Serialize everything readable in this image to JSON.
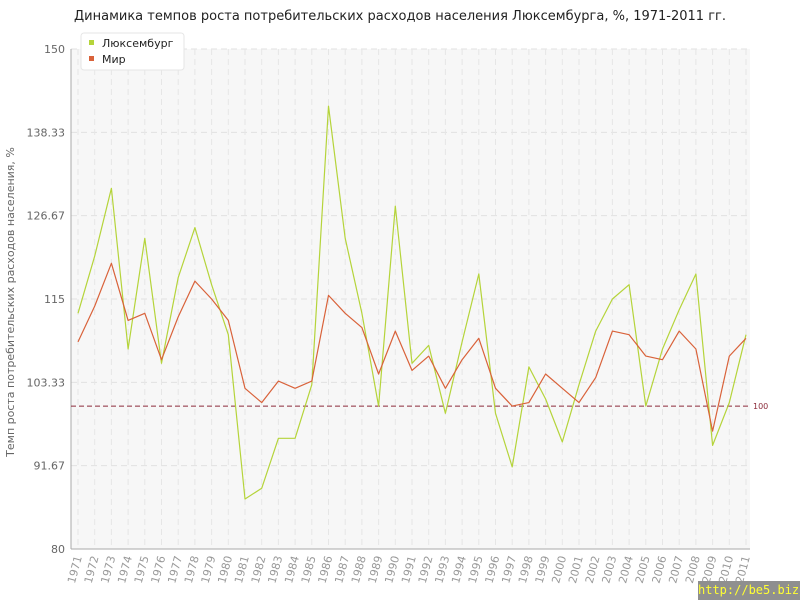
{
  "title": "Динамика темпов роста потребительских расходов населения Люксембурга, %, 1971-2011 гг.",
  "watermark": "http://be5.biz/",
  "chart_data": {
    "type": "line",
    "ylabel": "Темп роста потребительских расходов населения, %",
    "xlabel": "",
    "ylim": [
      80,
      150
    ],
    "yticks": [
      "80",
      "91.67",
      "103.33",
      "115",
      "126.67",
      "138.33",
      "150"
    ],
    "grid": true,
    "legend_position": "top-left",
    "reference_line": {
      "value": 100,
      "label": "100",
      "color": "#8b2a3a"
    },
    "categories": [
      "1971",
      "1972",
      "1973",
      "1974",
      "1975",
      "1976",
      "1977",
      "1978",
      "1979",
      "1980",
      "1981",
      "1982",
      "1983",
      "1984",
      "1985",
      "1986",
      "1987",
      "1988",
      "1989",
      "1990",
      "1991",
      "1992",
      "1993",
      "1994",
      "1995",
      "1996",
      "1997",
      "1998",
      "1999",
      "2000",
      "2001",
      "2002",
      "2003",
      "2004",
      "2005",
      "2006",
      "2007",
      "2008",
      "2009",
      "2010",
      "2011"
    ],
    "series": [
      {
        "name": "Люксембург",
        "color": "#b5d43a",
        "values": [
          113,
          121,
          130.5,
          108,
          123.5,
          106,
          118,
          125,
          117,
          110,
          87,
          88.5,
          95.5,
          95.5,
          103,
          142,
          123.5,
          113,
          100,
          128,
          106,
          108.5,
          99,
          109,
          118.5,
          99,
          91.5,
          105.5,
          101,
          95,
          103,
          110.5,
          115,
          117,
          100,
          108,
          113.5,
          118.5,
          94.5,
          100.5,
          110
        ]
      },
      {
        "name": "Мир",
        "color": "#d9623a",
        "values": [
          109,
          114,
          120,
          112,
          113,
          106.5,
          112.5,
          117.5,
          115,
          112,
          102.5,
          100.5,
          103.5,
          102.5,
          103.5,
          115.5,
          113,
          111,
          104.5,
          110.5,
          105,
          107,
          102.5,
          106.5,
          109.5,
          102.5,
          100,
          100.5,
          104.5,
          102.5,
          100.5,
          104,
          110.5,
          110,
          107,
          106.5,
          110.5,
          108,
          96.5,
          107,
          109.5
        ]
      }
    ]
  }
}
